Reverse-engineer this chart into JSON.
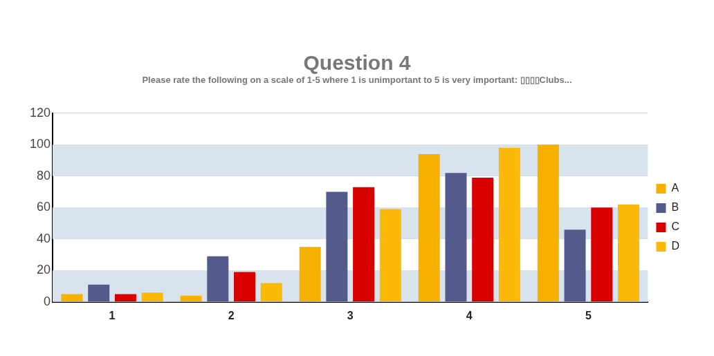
{
  "chart_data": {
    "type": "bar",
    "title": "Question 4",
    "subtitle": "Please rate the following on a scale of 1-5 where 1 is unimportant to 5 is very important: ▯▯▯▯Clubs...",
    "categories": [
      "1",
      "2",
      "3",
      "4",
      "5"
    ],
    "series": [
      {
        "name": "A",
        "color": "#f5b000",
        "values": [
          5,
          4,
          35,
          94,
          100
        ]
      },
      {
        "name": "B",
        "color": "#525b8c",
        "values": [
          11,
          29,
          70,
          82,
          46
        ]
      },
      {
        "name": "C",
        "color": "#d90000",
        "values": [
          5,
          19,
          73,
          79,
          60
        ]
      },
      {
        "name": "D",
        "color": "#fbb90a",
        "values": [
          6,
          12,
          59,
          98,
          62
        ]
      }
    ],
    "ylim": [
      0,
      120
    ],
    "yticks": [
      0,
      20,
      40,
      60,
      80,
      100,
      120
    ],
    "grid": "y",
    "legend": "right"
  }
}
